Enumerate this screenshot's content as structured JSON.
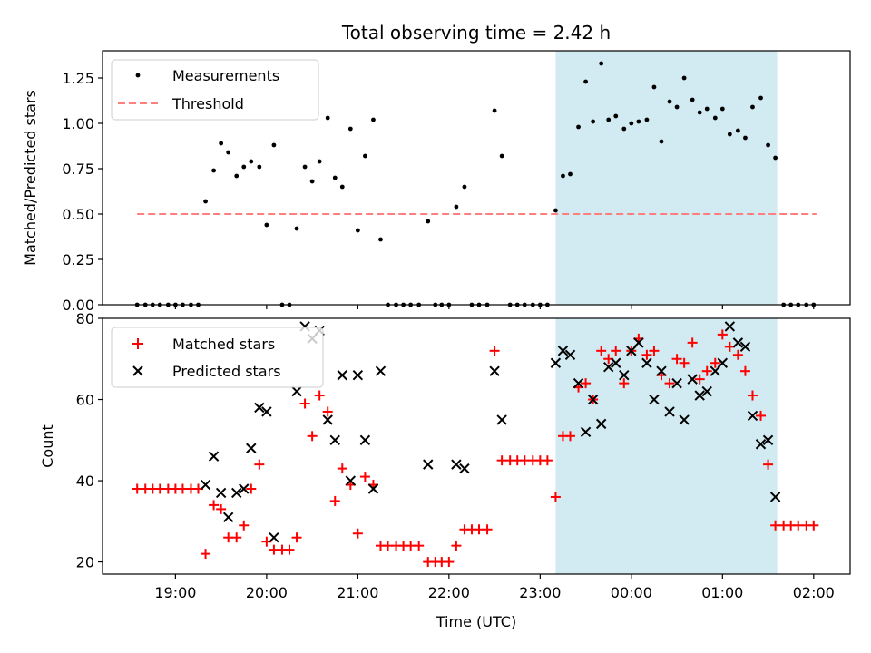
{
  "chart_data": [
    {
      "type": "scatter",
      "title": "Total observing time = 2.42 h",
      "ylabel": "Matched/Predicted stars",
      "xlabel": "",
      "ylim": [
        0,
        1.4
      ],
      "yticks": [
        "0.00",
        "0.25",
        "0.50",
        "0.75",
        "1.00",
        "1.25"
      ],
      "highlight_span": {
        "start": 23.17,
        "end": 25.6,
        "color": "#add8e6"
      },
      "legend": {
        "location": "top-left",
        "entries": [
          "Measurements",
          "Threshold"
        ]
      },
      "threshold": {
        "name": "Threshold",
        "value": 0.5,
        "x_start": 18.58,
        "x_end": 26.03,
        "color": "#ff7f7f"
      },
      "series": [
        {
          "name": "Measurements",
          "color": "#000000",
          "x": [
            18.58,
            18.67,
            18.75,
            18.83,
            18.92,
            19.0,
            19.08,
            19.17,
            19.25,
            19.33,
            19.42,
            19.5,
            19.58,
            19.67,
            19.75,
            19.83,
            19.92,
            20.0,
            20.08,
            20.17,
            20.25,
            20.33,
            20.42,
            20.5,
            20.58,
            20.67,
            20.75,
            20.83,
            20.92,
            21.0,
            21.08,
            21.17,
            21.25,
            21.33,
            21.42,
            21.5,
            21.58,
            21.67,
            21.77,
            21.85,
            21.92,
            22.0,
            22.08,
            22.17,
            22.25,
            22.33,
            22.42,
            22.5,
            22.58,
            22.67,
            22.75,
            22.83,
            22.92,
            23.0,
            23.08,
            23.17,
            23.25,
            23.33,
            23.42,
            23.5,
            23.58,
            23.67,
            23.75,
            23.83,
            23.92,
            24.0,
            24.08,
            24.17,
            24.25,
            24.33,
            24.42,
            24.5,
            24.58,
            24.67,
            24.75,
            24.83,
            24.92,
            25.0,
            25.08,
            25.17,
            25.25,
            25.33,
            25.42,
            25.5,
            25.58,
            25.67,
            25.75,
            25.83,
            25.92,
            26.0
          ],
          "y": [
            0.0,
            0.0,
            0.0,
            0.0,
            0.0,
            0.0,
            0.0,
            0.0,
            0.0,
            0.57,
            0.74,
            0.89,
            0.84,
            0.71,
            0.76,
            0.79,
            0.76,
            0.44,
            0.88,
            0.0,
            0.0,
            0.42,
            0.76,
            0.68,
            0.79,
            1.03,
            0.7,
            0.65,
            0.97,
            0.41,
            0.82,
            1.02,
            0.36,
            0.0,
            0.0,
            0.0,
            0.0,
            0.0,
            0.46,
            0.0,
            0.0,
            0.0,
            0.54,
            0.65,
            0.0,
            0.0,
            0.0,
            1.07,
            0.82,
            0.0,
            0.0,
            0.0,
            0.0,
            0.0,
            0.0,
            0.52,
            0.71,
            0.72,
            0.98,
            1.23,
            1.01,
            1.33,
            1.02,
            1.04,
            0.97,
            1.0,
            1.01,
            1.02,
            1.2,
            0.9,
            1.12,
            1.09,
            1.25,
            1.13,
            1.06,
            1.08,
            1.03,
            1.08,
            0.94,
            0.96,
            0.92,
            1.09,
            1.14,
            0.88,
            0.81,
            0.0,
            0.0,
            0.0,
            0.0,
            0.0
          ]
        }
      ]
    },
    {
      "type": "scatter",
      "title": "",
      "ylabel": "Count",
      "xlabel": "Time (UTC)",
      "ylim": [
        17,
        80
      ],
      "yticks": [
        "20",
        "40",
        "60",
        "80"
      ],
      "xticks": [
        "19:00",
        "20:00",
        "21:00",
        "22:00",
        "23:00",
        "00:00",
        "01:00",
        "02:00"
      ],
      "x_tick_hours": [
        19,
        20,
        21,
        22,
        23,
        24,
        25,
        26
      ],
      "x_range_hours": [
        18.2,
        26.4
      ],
      "highlight_span": {
        "start": 23.17,
        "end": 25.6,
        "color": "#add8e6"
      },
      "legend": {
        "location": "top-left",
        "entries": [
          "Matched stars",
          "Predicted stars"
        ]
      },
      "series": [
        {
          "name": "Matched stars",
          "color": "#ff0000",
          "marker": "plus",
          "x": [
            18.58,
            18.67,
            18.75,
            18.83,
            18.92,
            19.0,
            19.08,
            19.17,
            19.25,
            19.33,
            19.42,
            19.5,
            19.58,
            19.67,
            19.75,
            19.83,
            19.92,
            20.0,
            20.08,
            20.17,
            20.25,
            20.33,
            20.42,
            20.5,
            20.58,
            20.67,
            20.75,
            20.83,
            20.92,
            21.0,
            21.08,
            21.17,
            21.25,
            21.33,
            21.42,
            21.5,
            21.58,
            21.67,
            21.77,
            21.85,
            21.92,
            22.0,
            22.08,
            22.17,
            22.25,
            22.33,
            22.42,
            22.5,
            22.58,
            22.67,
            22.75,
            22.83,
            22.92,
            23.0,
            23.08,
            23.17,
            23.25,
            23.33,
            23.42,
            23.5,
            23.58,
            23.67,
            23.75,
            23.83,
            23.92,
            24.0,
            24.08,
            24.17,
            24.25,
            24.33,
            24.42,
            24.5,
            24.58,
            24.67,
            24.75,
            24.83,
            24.92,
            25.0,
            25.08,
            25.17,
            25.25,
            25.33,
            25.42,
            25.5,
            25.58,
            25.67,
            25.75,
            25.83,
            25.92,
            26.0
          ],
          "y": [
            38,
            38,
            38,
            38,
            38,
            38,
            38,
            38,
            38,
            22,
            34,
            33,
            26,
            26,
            29,
            38,
            44,
            25,
            23,
            23,
            23,
            26,
            59,
            51,
            61,
            57,
            35,
            43,
            39,
            27,
            41,
            39,
            24,
            24,
            24,
            24,
            24,
            24,
            20,
            20,
            20,
            20,
            24,
            28,
            28,
            28,
            28,
            72,
            45,
            45,
            45,
            45,
            45,
            45,
            45,
            36,
            51,
            51,
            63,
            64,
            60,
            72,
            70,
            72,
            64,
            72,
            75,
            71,
            72,
            66,
            64,
            70,
            69,
            74,
            65,
            67,
            69,
            76,
            73,
            71,
            67,
            61,
            56,
            44,
            29,
            29,
            29,
            29,
            29,
            29
          ]
        },
        {
          "name": "Predicted stars",
          "color": "#000000",
          "marker": "x",
          "x": [
            19.33,
            19.42,
            19.5,
            19.58,
            19.67,
            19.75,
            19.83,
            19.92,
            20.0,
            20.08,
            20.33,
            20.42,
            20.5,
            20.58,
            20.67,
            20.75,
            20.83,
            20.92,
            21.0,
            21.08,
            21.17,
            21.25,
            21.77,
            22.08,
            22.17,
            22.5,
            22.58,
            23.17,
            23.25,
            23.33,
            23.42,
            23.5,
            23.58,
            23.67,
            23.75,
            23.83,
            23.92,
            24.0,
            24.08,
            24.17,
            24.25,
            24.33,
            24.42,
            24.5,
            24.58,
            24.67,
            24.75,
            24.83,
            24.92,
            25.0,
            25.08,
            25.17,
            25.25,
            25.33,
            25.42,
            25.5,
            25.58
          ],
          "y": [
            39,
            46,
            37,
            31,
            37,
            38,
            48,
            58,
            57,
            26,
            62,
            78,
            75,
            77,
            55,
            50,
            66,
            40,
            66,
            50,
            38,
            67,
            44,
            44,
            43,
            67,
            55,
            69,
            72,
            71,
            64,
            52,
            60,
            54,
            68,
            69,
            66,
            72,
            74,
            69,
            60,
            67,
            57,
            64,
            55,
            65,
            61,
            62,
            67,
            69,
            78,
            74,
            73,
            56,
            49,
            50,
            36
          ]
        }
      ]
    }
  ]
}
